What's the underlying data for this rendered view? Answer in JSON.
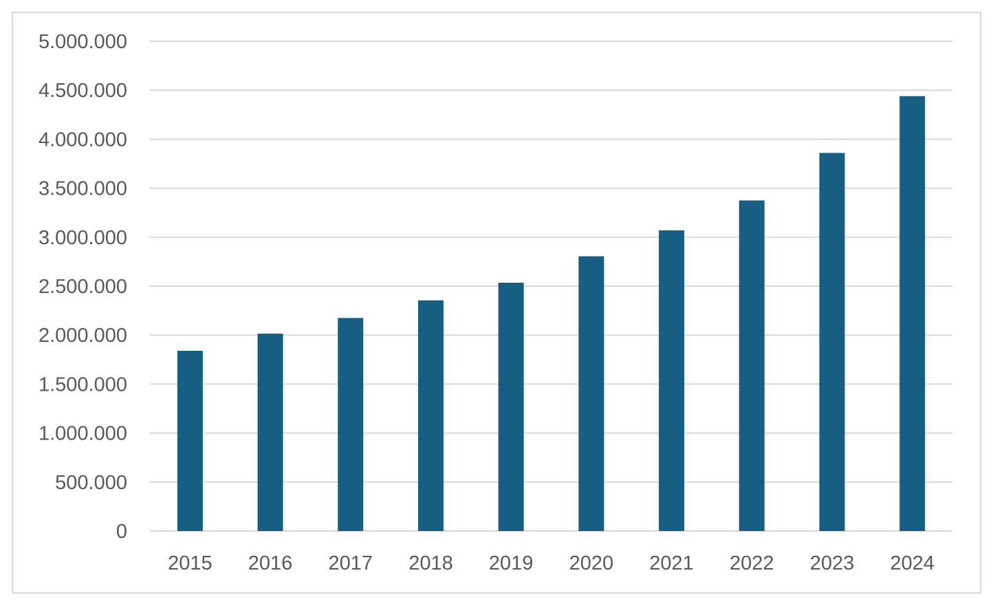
{
  "chart_data": {
    "type": "bar",
    "categories": [
      "2015",
      "2016",
      "2017",
      "2018",
      "2019",
      "2020",
      "2021",
      "2022",
      "2023",
      "2024"
    ],
    "values": [
      1840000,
      2015000,
      2175000,
      2355000,
      2535000,
      2805000,
      3070000,
      3375000,
      3860000,
      4440000
    ],
    "ylim": [
      0,
      5000000
    ],
    "yticks": [
      0,
      500000,
      1000000,
      1500000,
      2000000,
      2500000,
      3000000,
      3500000,
      4000000,
      4500000,
      5000000
    ],
    "ytick_labels": [
      "0",
      "500.000",
      "1.000.000",
      "1.500.000",
      "2.000.000",
      "2.500.000",
      "3.000.000",
      "3.500.000",
      "4.000.000",
      "4.500.000",
      "5.000.000"
    ],
    "grid": true,
    "legend": "none",
    "colors": {
      "bar": "#175f82",
      "grid": "#d9d9d9",
      "text": "#595959"
    }
  }
}
